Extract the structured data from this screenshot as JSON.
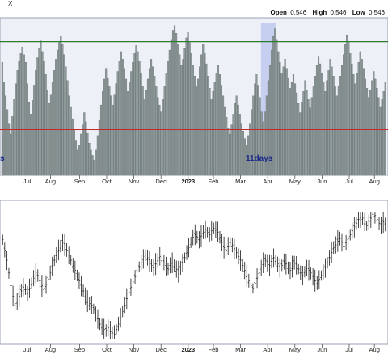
{
  "header": {
    "symbol_fragment": "X",
    "open_label": "Open",
    "open_value": "0.546",
    "high_label": "High",
    "high_value": "0.546",
    "low_label": "Low",
    "low_value": "0.546"
  },
  "annotations": {
    "left_tag": "s",
    "highlight_tag": "11days"
  },
  "colors": {
    "plot_bg": "#eef0f8",
    "bar": "#8e9999",
    "bar_edge": "#56605f",
    "upper_line": "#2e7d2e",
    "lower_line": "#c62828",
    "highlight": "#b8c4ee",
    "tag_text": "#1a2a8c",
    "price": "#1a1a1a"
  },
  "chart_data": [
    {
      "type": "bar",
      "panel": "top",
      "x_tick_labels": [
        "Jul",
        "Aug",
        "Sep",
        "Oct",
        "Nov",
        "Dec",
        "2023",
        "Feb",
        "Mar",
        "Apr",
        "May",
        "Jun",
        "Jul",
        "Aug"
      ],
      "ylim": [
        0,
        1
      ],
      "upper_line_value": 0.875,
      "lower_line_value": 0.3,
      "highlight_range_bars": [
        155,
        163
      ],
      "values": [
        0.74,
        0.61,
        0.52,
        0.43,
        0.34,
        0.27,
        0.39,
        0.5,
        0.6,
        0.69,
        0.75,
        0.8,
        0.84,
        0.79,
        0.74,
        0.6,
        0.48,
        0.4,
        0.49,
        0.59,
        0.69,
        0.77,
        0.83,
        0.88,
        0.81,
        0.75,
        0.66,
        0.56,
        0.47,
        0.53,
        0.61,
        0.69,
        0.76,
        0.82,
        0.87,
        0.91,
        0.86,
        0.79,
        0.71,
        0.62,
        0.52,
        0.45,
        0.37,
        0.3,
        0.23,
        0.17,
        0.2,
        0.27,
        0.33,
        0.41,
        0.35,
        0.28,
        0.21,
        0.17,
        0.13,
        0.1,
        0.17,
        0.26,
        0.36,
        0.46,
        0.55,
        0.63,
        0.7,
        0.64,
        0.58,
        0.52,
        0.46,
        0.53,
        0.6,
        0.68,
        0.75,
        0.81,
        0.76,
        0.7,
        0.63,
        0.55,
        0.61,
        0.68,
        0.74,
        0.8,
        0.85,
        0.81,
        0.75,
        0.67,
        0.58,
        0.5,
        0.56,
        0.63,
        0.7,
        0.76,
        0.71,
        0.65,
        0.58,
        0.51,
        0.46,
        0.42,
        0.5,
        0.58,
        0.67,
        0.75,
        0.82,
        0.89,
        0.95,
        0.98,
        0.93,
        0.86,
        0.79,
        0.72,
        0.76,
        0.83,
        0.9,
        0.94,
        0.87,
        0.8,
        0.72,
        0.65,
        0.58,
        0.63,
        0.71,
        0.79,
        0.86,
        0.8,
        0.73,
        0.65,
        0.57,
        0.5,
        0.55,
        0.61,
        0.67,
        0.72,
        0.66,
        0.59,
        0.52,
        0.45,
        0.38,
        0.31,
        0.27,
        0.33,
        0.4,
        0.47,
        0.52,
        0.46,
        0.4,
        0.34,
        0.29,
        0.24,
        0.2,
        0.26,
        0.34,
        0.43,
        0.52,
        0.6,
        0.66,
        0.59,
        0.51,
        0.42,
        0.35,
        0.42,
        0.52,
        0.62,
        0.72,
        0.82,
        0.91,
        0.96,
        0.89,
        0.81,
        0.74,
        0.67,
        0.71,
        0.76,
        0.7,
        0.64,
        0.57,
        0.61,
        0.66,
        0.6,
        0.54,
        0.47,
        0.41,
        0.48,
        0.55,
        0.62,
        0.56,
        0.5,
        0.44,
        0.51,
        0.58,
        0.65,
        0.72,
        0.78,
        0.73,
        0.67,
        0.61,
        0.55,
        0.62,
        0.69,
        0.76,
        0.71,
        0.65,
        0.58,
        0.52,
        0.58,
        0.65,
        0.72,
        0.79,
        0.86,
        0.92,
        0.87,
        0.8,
        0.73,
        0.66,
        0.6,
        0.67,
        0.74,
        0.81,
        0.76,
        0.7,
        0.63,
        0.57,
        0.51,
        0.56,
        0.62,
        0.68,
        0.63,
        0.57,
        0.51,
        0.45,
        0.5,
        0.55,
        0.61
      ]
    },
    {
      "type": "line",
      "panel": "bottom",
      "style": "ohlc-bars",
      "x_tick_labels": [
        "Jul",
        "Aug",
        "Sep",
        "Oct",
        "Nov",
        "Dec",
        "2023",
        "Feb",
        "Mar",
        "Apr",
        "May",
        "Jun",
        "Jul",
        "Aug"
      ],
      "values": [
        0.78,
        0.7,
        0.62,
        0.52,
        0.42,
        0.34,
        0.28,
        0.3,
        0.34,
        0.38,
        0.41,
        0.39,
        0.36,
        0.4,
        0.44,
        0.48,
        0.52,
        0.5,
        0.46,
        0.42,
        0.4,
        0.43,
        0.47,
        0.52,
        0.57,
        0.62,
        0.66,
        0.7,
        0.73,
        0.76,
        0.74,
        0.7,
        0.66,
        0.62,
        0.58,
        0.54,
        0.5,
        0.46,
        0.42,
        0.38,
        0.34,
        0.3,
        0.28,
        0.27,
        0.24,
        0.2,
        0.16,
        0.12,
        0.1,
        0.08,
        0.07,
        0.09,
        0.06,
        0.05,
        0.04,
        0.08,
        0.12,
        0.17,
        0.22,
        0.27,
        0.32,
        0.37,
        0.41,
        0.45,
        0.49,
        0.53,
        0.57,
        0.6,
        0.63,
        0.66,
        0.64,
        0.61,
        0.58,
        0.56,
        0.59,
        0.62,
        0.65,
        0.63,
        0.6,
        0.57,
        0.55,
        0.58,
        0.6,
        0.58,
        0.55,
        0.53,
        0.56,
        0.6,
        0.64,
        0.68,
        0.72,
        0.76,
        0.8,
        0.82,
        0.8,
        0.78,
        0.81,
        0.84,
        0.86,
        0.84,
        0.82,
        0.85,
        0.87,
        0.86,
        0.84,
        0.8,
        0.76,
        0.72,
        0.7,
        0.73,
        0.76,
        0.74,
        0.71,
        0.68,
        0.65,
        0.62,
        0.58,
        0.54,
        0.5,
        0.46,
        0.42,
        0.4,
        0.44,
        0.48,
        0.52,
        0.56,
        0.6,
        0.62,
        0.6,
        0.58,
        0.61,
        0.64,
        0.62,
        0.59,
        0.56,
        0.58,
        0.61,
        0.59,
        0.56,
        0.54,
        0.57,
        0.6,
        0.58,
        0.55,
        0.52,
        0.5,
        0.53,
        0.56,
        0.54,
        0.52,
        0.49,
        0.46,
        0.44,
        0.47,
        0.5,
        0.53,
        0.56,
        0.6,
        0.64,
        0.68,
        0.72,
        0.74,
        0.77,
        0.79,
        0.76,
        0.73,
        0.76,
        0.79,
        0.82,
        0.85,
        0.88,
        0.91,
        0.94,
        0.96,
        0.95,
        0.92,
        0.89,
        0.92,
        0.95,
        0.98,
        0.97,
        0.94,
        0.91,
        0.89,
        0.92,
        0.9
      ]
    }
  ]
}
